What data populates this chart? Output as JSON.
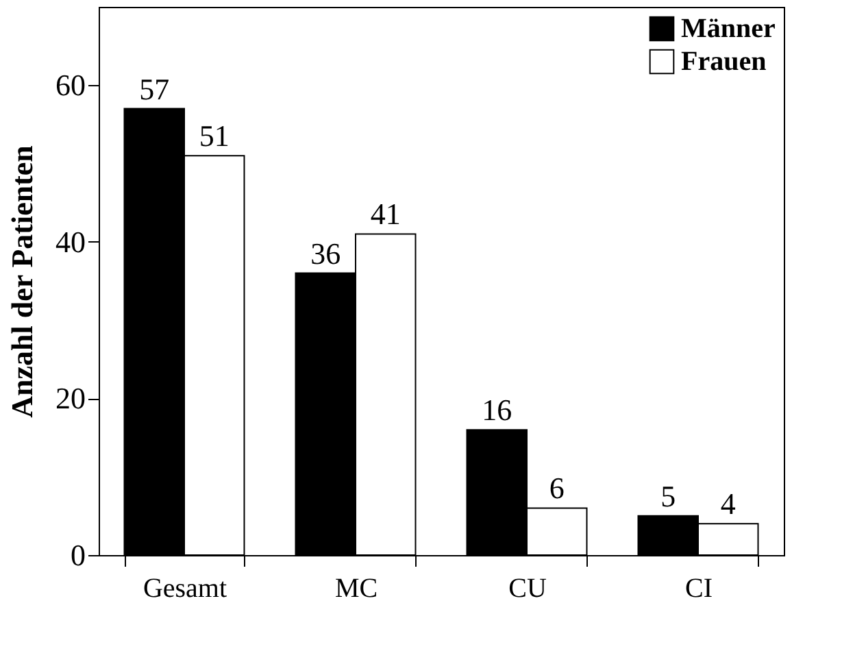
{
  "chart_data": {
    "type": "bar",
    "ylabel": "Anzahl der Patienten",
    "categories": [
      "Gesamt",
      "MC",
      "CU",
      "CI"
    ],
    "series": [
      {
        "name": "Männer",
        "color": "#000000",
        "values": [
          57,
          36,
          16,
          5
        ]
      },
      {
        "name": "Frauen",
        "color": "#ffffff",
        "values": [
          51,
          41,
          6,
          4
        ]
      }
    ],
    "ylim": [
      0,
      70
    ],
    "yticks": [
      0,
      20,
      40,
      60
    ],
    "grid": false,
    "legend": "top right",
    "data_labels": true
  }
}
